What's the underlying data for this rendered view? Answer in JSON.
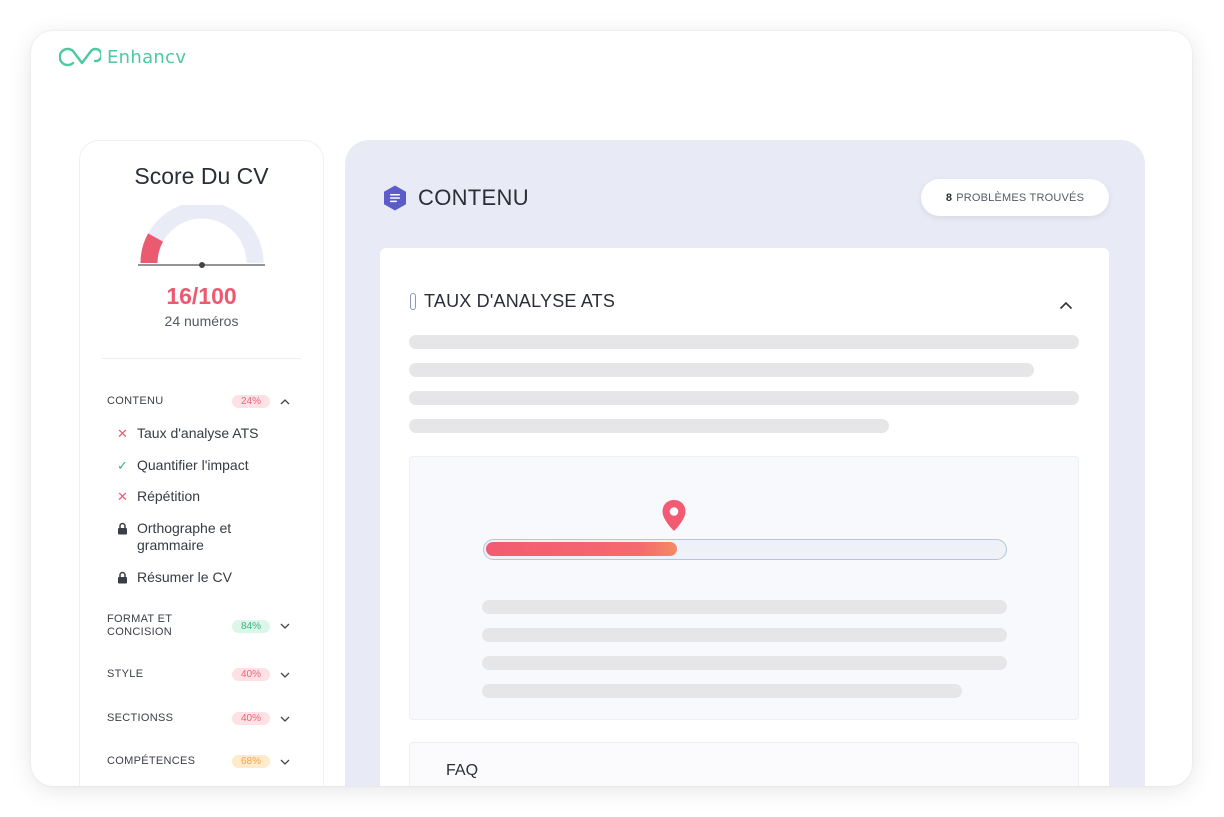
{
  "brand": {
    "name": "Enhancv",
    "color": "#4cc9a0"
  },
  "sidebar": {
    "title": "Score Du CV",
    "score": "16/100",
    "score_fraction": 0.16,
    "issues_count": "24 numéros",
    "categories": [
      {
        "label": "CONTENU",
        "percent": "24%",
        "status": "red",
        "expanded": true,
        "items": [
          {
            "label": "Taux d'analyse ATS",
            "icon": "x-icon",
            "status": "fail"
          },
          {
            "label": "Quantifier l'impact",
            "icon": "check-icon",
            "status": "pass"
          },
          {
            "label": "Répétition",
            "icon": "x-icon",
            "status": "fail"
          },
          {
            "label": "Orthographe et grammaire",
            "icon": "lock-icon",
            "status": "locked"
          },
          {
            "label": "Résumer le CV",
            "icon": "lock-icon",
            "status": "locked"
          }
        ]
      },
      {
        "label": "FORMAT ET CONCISION",
        "percent": "84%",
        "status": "green",
        "expanded": false
      },
      {
        "label": "STYLE",
        "percent": "40%",
        "status": "red",
        "expanded": false
      },
      {
        "label": "SECTIONSS",
        "percent": "40%",
        "status": "red",
        "expanded": false
      },
      {
        "label": "COMPÉTENCES",
        "percent": "68%",
        "status": "orange",
        "expanded": false
      }
    ]
  },
  "main": {
    "title": "CONTENU",
    "issues_count": "8",
    "issues_label": "PROBLÈMES TROUVÉS",
    "section": {
      "title": "TAUX D'ANALYSE ATS",
      "ats_score_fraction": 0.37
    },
    "faq_label": "FAQ"
  },
  "colors": {
    "danger": "#ec5a72",
    "success": "#3ab483",
    "warning": "#eda64b",
    "accent": "#5b5cc9",
    "panel": "#e8eaf5"
  }
}
